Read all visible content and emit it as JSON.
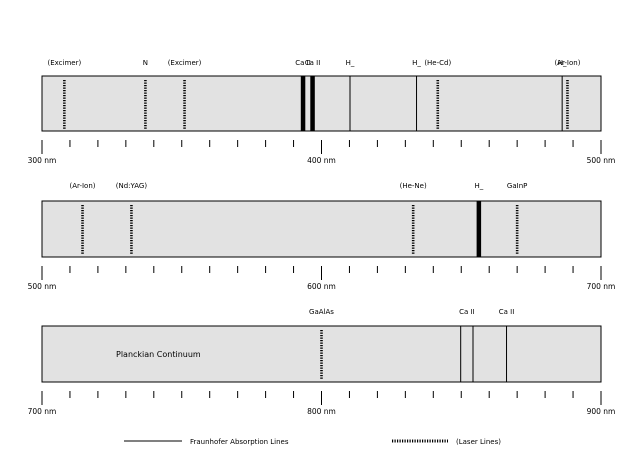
{
  "colors": {
    "background": "#ffffff",
    "band_fill": "#e2e2e2",
    "line": "#000000"
  },
  "panels": [
    {
      "range_nm": [
        300,
        500
      ],
      "axis_labels": [
        {
          "nm": 300,
          "text": "300 nm"
        },
        {
          "nm": 400,
          "text": "400 nm"
        },
        {
          "nm": 500,
          "text": "500 nm"
        }
      ],
      "lines": [
        {
          "nm": 308,
          "style": "laser"
        },
        {
          "nm": 337,
          "style": "laser"
        },
        {
          "nm": 351,
          "style": "laser"
        },
        {
          "nm": 393.4,
          "style": "fraunhofer-bold"
        },
        {
          "nm": 396.8,
          "style": "fraunhofer-bold"
        },
        {
          "nm": 410.2,
          "style": "fraunhofer"
        },
        {
          "nm": 441.6,
          "style": "laser"
        },
        {
          "nm": 434,
          "style": "fraunhofer"
        },
        {
          "nm": 486.1,
          "style": "fraunhofer"
        },
        {
          "nm": 488,
          "style": "laser"
        }
      ],
      "labels": [
        {
          "nm": 308,
          "text": "(Excimer)"
        },
        {
          "nm": 337,
          "text": "N"
        },
        {
          "nm": 351,
          "text": "(Excimer)"
        },
        {
          "nm": 393.4,
          "text": "Ca II"
        },
        {
          "nm": 396.8,
          "text": "Ca II"
        },
        {
          "nm": 410.2,
          "text": "H_"
        },
        {
          "nm": 441.6,
          "text": "(He-Cd)"
        },
        {
          "nm": 434,
          "text": "H_"
        },
        {
          "nm": 486.1,
          "text": "H_"
        },
        {
          "nm": 488,
          "text": "(Ar-Ion)"
        }
      ]
    },
    {
      "range_nm": [
        500,
        700
      ],
      "axis_labels": [
        {
          "nm": 500,
          "text": "500 nm"
        },
        {
          "nm": 600,
          "text": "600 nm"
        },
        {
          "nm": 700,
          "text": "700 nm"
        }
      ],
      "lines": [
        {
          "nm": 514.5,
          "style": "laser"
        },
        {
          "nm": 532,
          "style": "laser"
        },
        {
          "nm": 632.8,
          "style": "laser"
        },
        {
          "nm": 656.3,
          "style": "fraunhofer-bold"
        },
        {
          "nm": 670,
          "style": "laser"
        }
      ],
      "labels": [
        {
          "nm": 514.5,
          "text": "(Ar-Ion)"
        },
        {
          "nm": 532,
          "text": "(Nd:YAG)"
        },
        {
          "nm": 632.8,
          "text": "(He-Ne)"
        },
        {
          "nm": 656.3,
          "text": "H_"
        },
        {
          "nm": 670,
          "text": "GaInP"
        }
      ]
    },
    {
      "range_nm": [
        700,
        900
      ],
      "axis_labels": [
        {
          "nm": 700,
          "text": "700 nm"
        },
        {
          "nm": 800,
          "text": "800 nm"
        },
        {
          "nm": 900,
          "text": "900 nm"
        }
      ],
      "lines": [
        {
          "nm": 800,
          "style": "laser"
        },
        {
          "nm": 849.8,
          "style": "fraunhofer"
        },
        {
          "nm": 854.2,
          "style": "fraunhofer"
        },
        {
          "nm": 866.2,
          "style": "fraunhofer"
        }
      ],
      "labels": [
        {
          "nm": 800,
          "text": "GaAlAs"
        },
        {
          "nm": 852,
          "text": "Ca II"
        },
        {
          "nm": 866.2,
          "text": "Ca II"
        }
      ],
      "continuum_label": "Planckian Continuum"
    }
  ],
  "legend": {
    "fraunhofer": "Fraunhofer Absorption Lines",
    "laser": "(Laser Lines)"
  }
}
